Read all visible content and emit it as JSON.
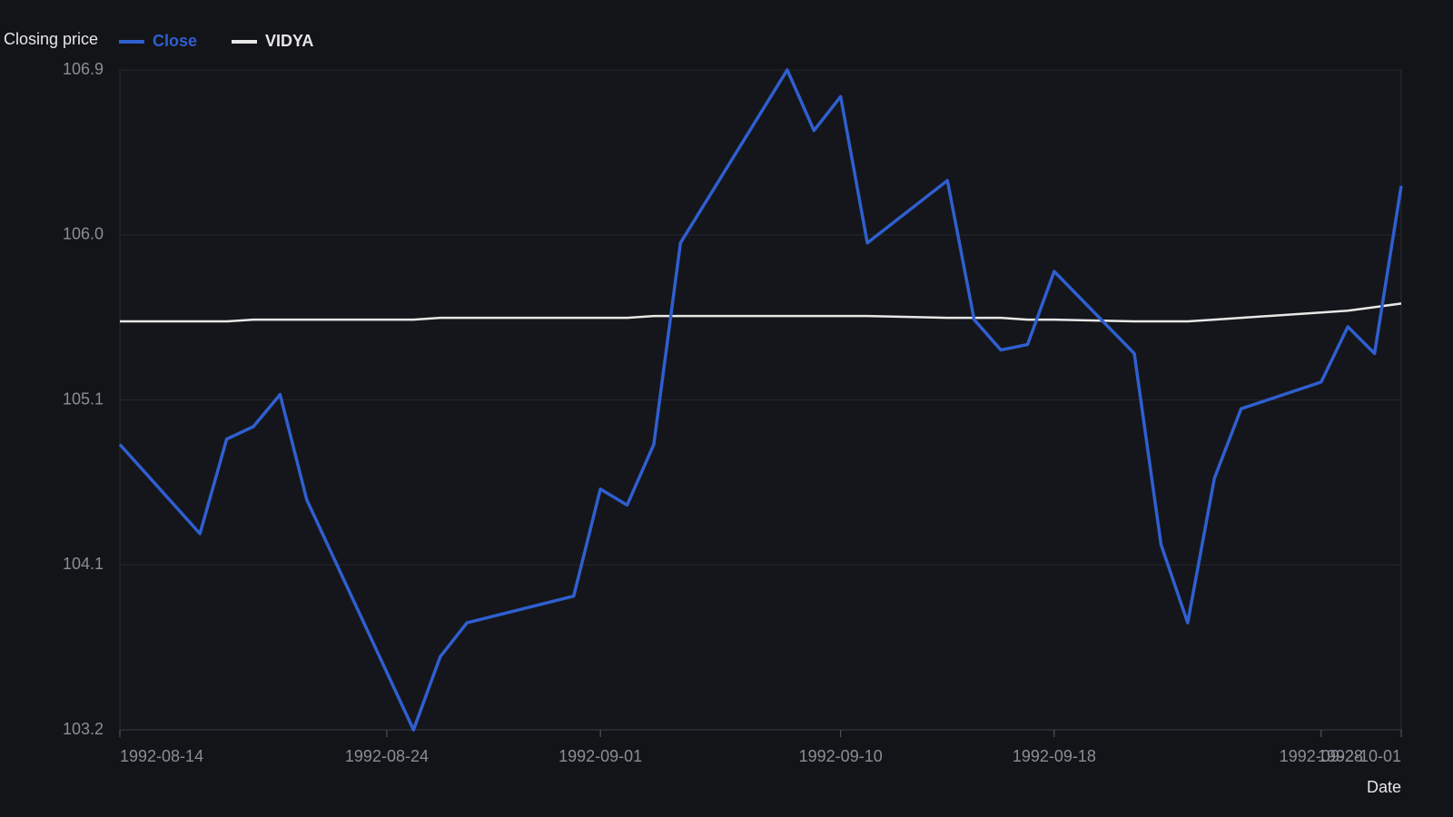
{
  "chart_data": {
    "type": "line",
    "legend_title": "Closing price",
    "x_label": "Date",
    "x": [
      "1992-08-14",
      "1992-08-17",
      "1992-08-18",
      "1992-08-19",
      "1992-08-20",
      "1992-08-21",
      "1992-08-25",
      "1992-08-26",
      "1992-08-27",
      "1992-08-31",
      "1992-09-01",
      "1992-09-02",
      "1992-09-03",
      "1992-09-04",
      "1992-09-08",
      "1992-09-09",
      "1992-09-10",
      "1992-09-11",
      "1992-09-14",
      "1992-09-15",
      "1992-09-16",
      "1992-09-17",
      "1992-09-18",
      "1992-09-21",
      "1992-09-22",
      "1992-09-23",
      "1992-09-24",
      "1992-09-25",
      "1992-09-28",
      "1992-09-29",
      "1992-09-30",
      "1992-10-01"
    ],
    "series": [
      {
        "name": "Close",
        "color": "#2f5fd0",
        "values": [
          104.8,
          104.3,
          104.83,
          104.9,
          105.08,
          104.49,
          103.2,
          103.61,
          103.8,
          103.95,
          104.55,
          104.46,
          104.8,
          105.93,
          106.9,
          106.56,
          106.75,
          105.93,
          106.28,
          105.5,
          105.33,
          105.36,
          105.77,
          105.31,
          104.24,
          103.8,
          104.61,
          105.0,
          105.15,
          105.46,
          105.31,
          106.25
        ]
      },
      {
        "name": "VIDYA",
        "color": "#e8e8e8",
        "values": [
          105.49,
          105.49,
          105.49,
          105.5,
          105.5,
          105.5,
          105.5,
          105.51,
          105.51,
          105.51,
          105.51,
          105.51,
          105.52,
          105.52,
          105.52,
          105.52,
          105.52,
          105.52,
          105.51,
          105.51,
          105.51,
          105.5,
          105.5,
          105.49,
          105.49,
          105.49,
          105.5,
          105.51,
          105.54,
          105.55,
          105.57,
          105.59
        ]
      }
    ],
    "xlim": [
      "1992-08-14",
      "1992-10-01"
    ],
    "xticks": [
      "1992-08-14",
      "1992-08-24",
      "1992-09-01",
      "1992-09-10",
      "1992-09-18",
      "1992-09-28",
      "1992-10-01"
    ],
    "ylim": [
      103.2,
      106.9
    ],
    "yticks": [
      103.2,
      {
        "value": 104.125,
        "label": "104.1"
      },
      {
        "value": 105.05,
        "label": "105.1"
      },
      {
        "value": 105.975,
        "label": "106.0"
      },
      106.9
    ],
    "grid": true
  }
}
